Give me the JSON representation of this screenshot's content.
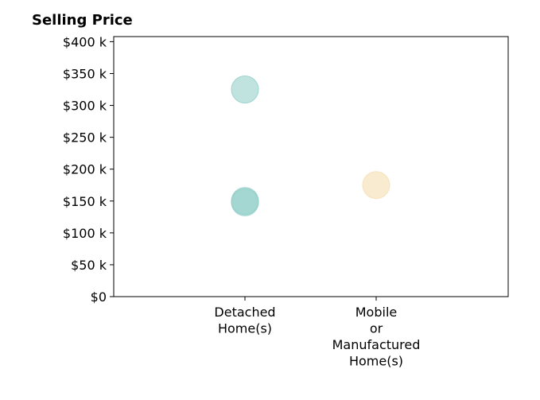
{
  "chart_data": {
    "type": "scatter",
    "title": "Selling Price",
    "categories": [
      "Detached\nHome(s)",
      "Mobile\nor\nManufactured\nHome(s)"
    ],
    "y_ticks": [
      "$0",
      "$50 k",
      "$100 k",
      "$150 k",
      "$200 k",
      "$250 k",
      "$300 k",
      "$350 k",
      "$400 k"
    ],
    "ylim": [
      0,
      408000
    ],
    "grid": false,
    "points": [
      {
        "category": 0,
        "value": 325000,
        "color": "#8dccc6",
        "opacity": 0.55
      },
      {
        "category": 0,
        "value": 150000,
        "color": "#8dccc6",
        "opacity": 0.55
      },
      {
        "category": 0,
        "value": 148000,
        "color": "#8dccc6",
        "opacity": 0.55
      },
      {
        "category": 1,
        "value": 175000,
        "color": "#f5ddb0",
        "opacity": 0.6
      }
    ]
  }
}
